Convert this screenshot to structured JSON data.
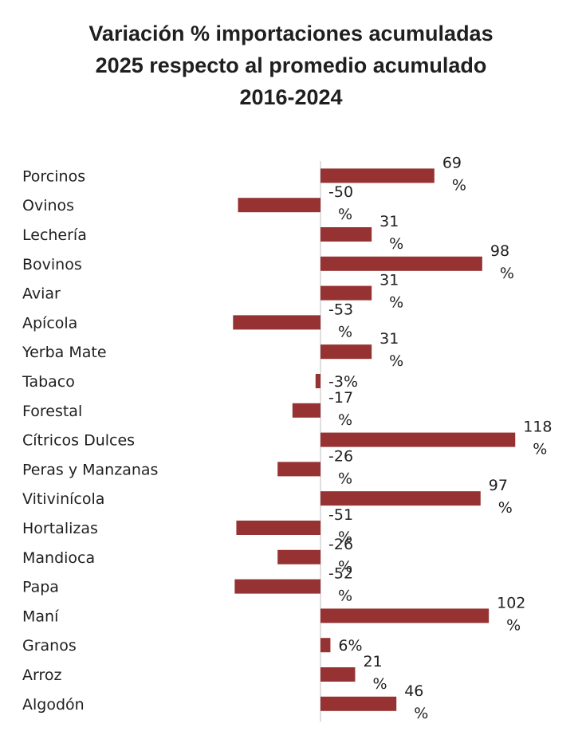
{
  "colors": {
    "bar": "#963232",
    "axis": "#bfbfbf",
    "text": "#1f1f1f"
  },
  "chart_data": {
    "type": "bar",
    "orientation": "horizontal",
    "title": "Variación % importaciones acumuladas 2025 respecto al promedio acumulado 2016-2024",
    "title_lines": [
      "Variación % importaciones acumuladas",
      "2025 respecto al promedio acumulado",
      "2016-2024"
    ],
    "xlabel": "",
    "ylabel": "",
    "grid": false,
    "legend": "none",
    "categories": [
      "Porcinos",
      "Ovinos",
      "Lechería",
      "Bovinos",
      "Aviar",
      "Apícola",
      "Yerba Mate",
      "Tabaco",
      "Forestal",
      "Cítricos Dulces",
      "Peras y Manzanas",
      "Vitivinícola",
      "Hortalizas",
      "Mandioca",
      "Papa",
      "Maní",
      "Granos",
      "Arroz",
      "Algodón"
    ],
    "values": [
      69,
      -50,
      31,
      98,
      31,
      -53,
      31,
      -3,
      -17,
      118,
      -26,
      97,
      -51,
      -26,
      -52,
      102,
      6,
      21,
      46
    ],
    "value_labels": [
      "69 %",
      "-50 %",
      "31 %",
      "98 %",
      "31 %",
      "-53 %",
      "31 %",
      "-3%",
      "-17 %",
      "118 %",
      "-26 %",
      "97 %",
      "-51 %",
      "-26 %",
      "-52 %",
      "102 %",
      "6%",
      "21 %",
      "46 %"
    ],
    "xlim": [
      -60,
      125
    ]
  }
}
